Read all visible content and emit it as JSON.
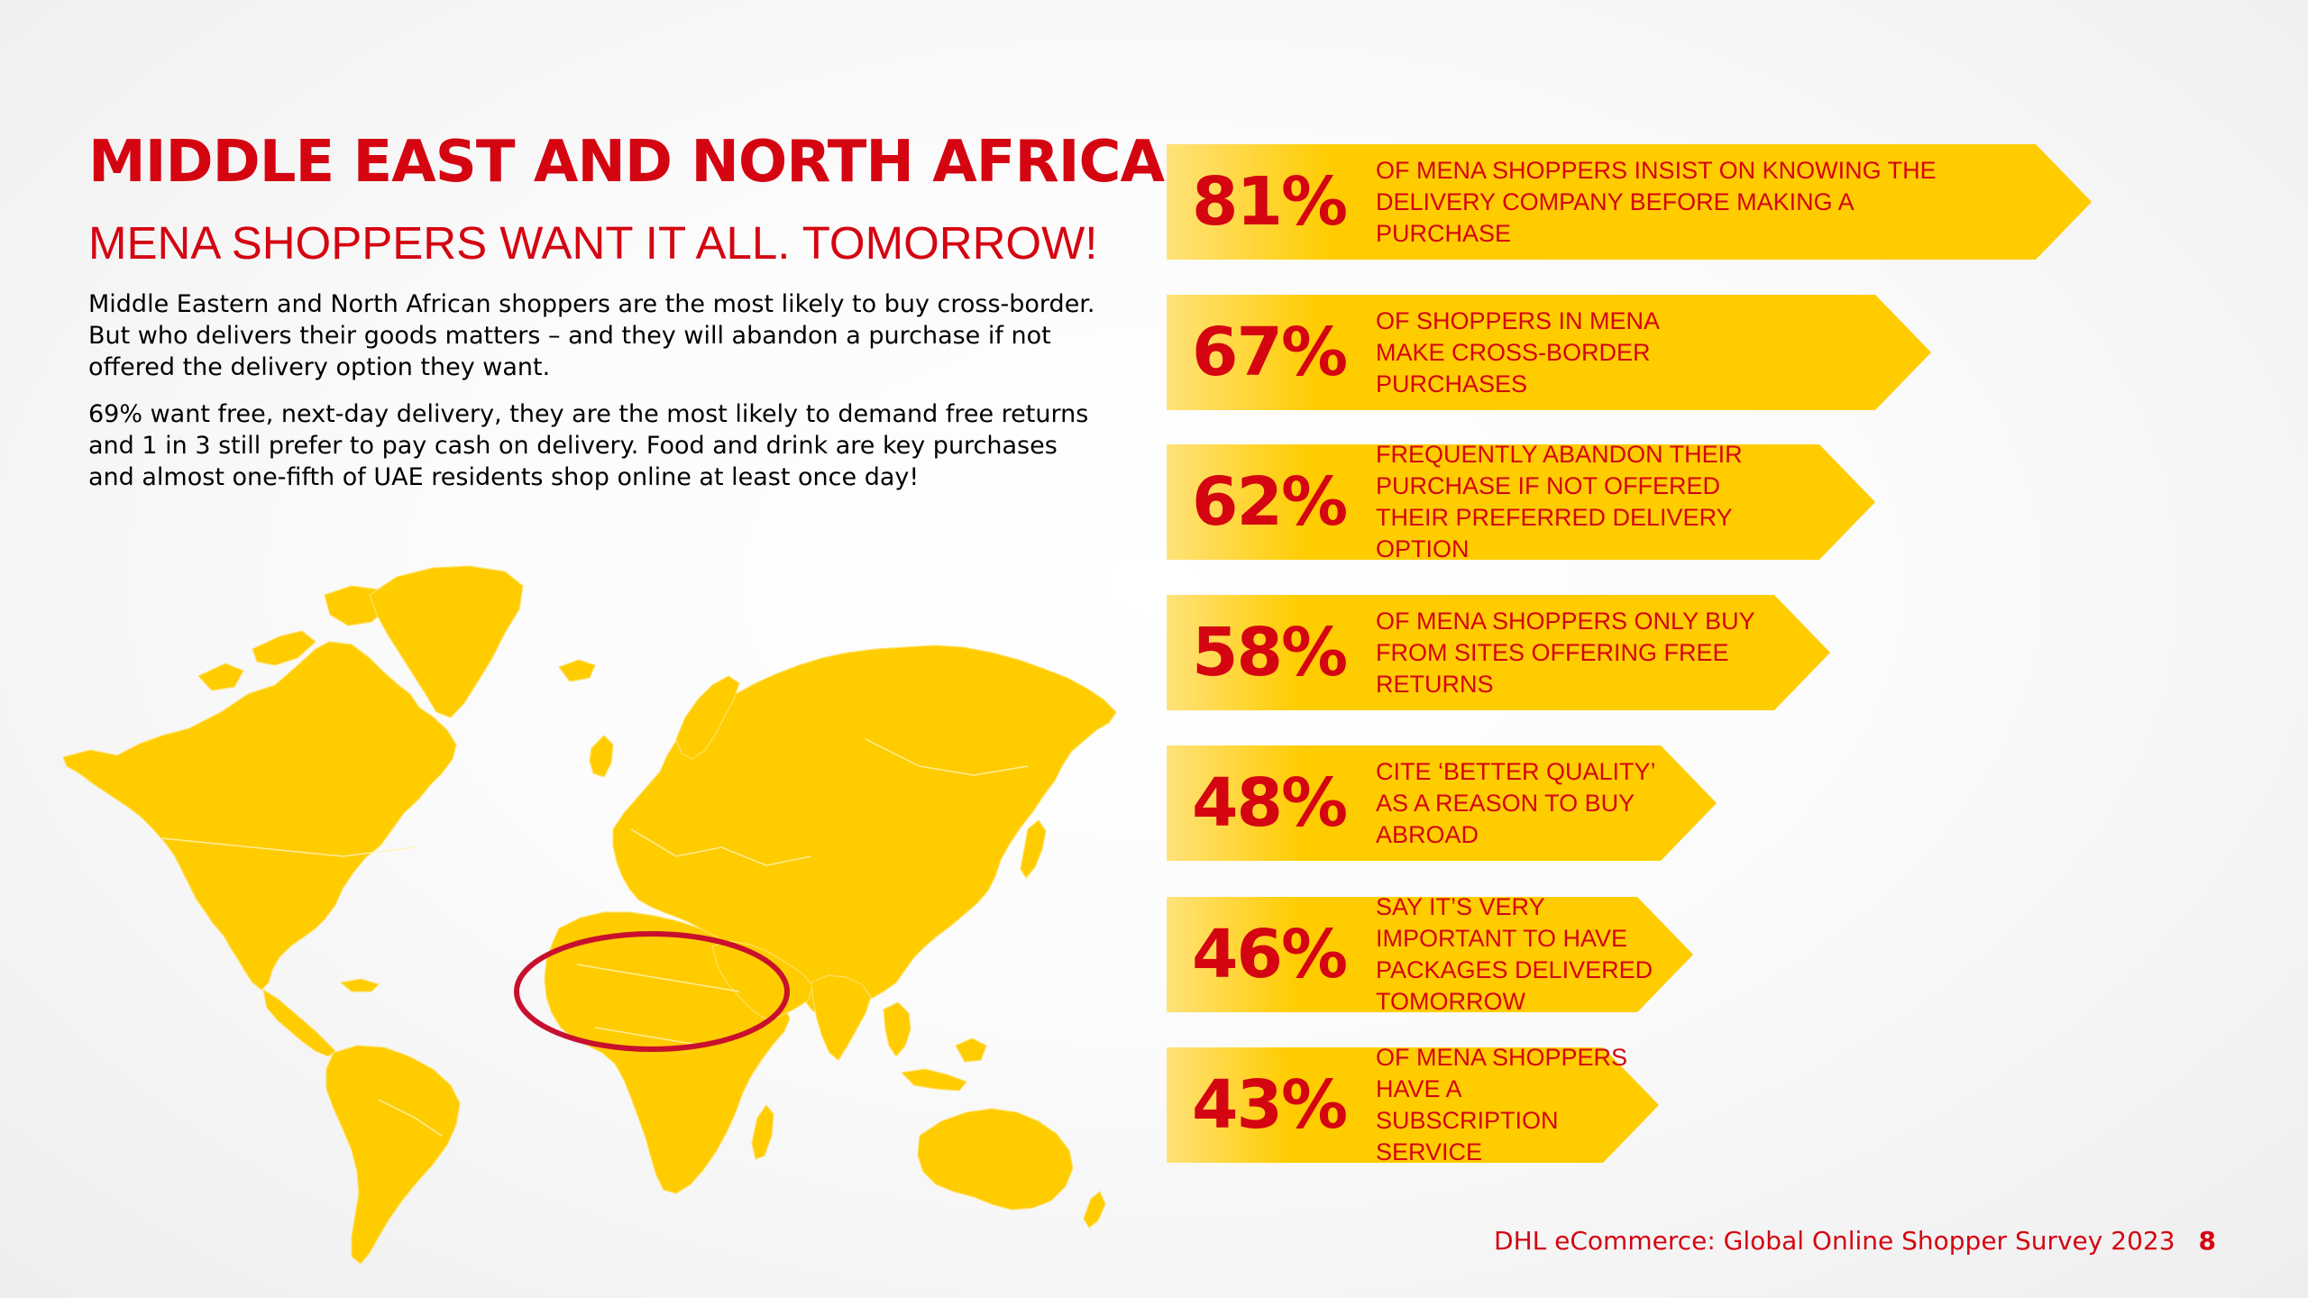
{
  "title": "MIDDLE EAST AND NORTH AFRICA",
  "subtitle": "MENA SHOPPERS WANT IT ALL. TOMORROW!",
  "paragraphs": [
    "Middle Eastern and North African shoppers are the most likely to buy cross-border. But who delivers their goods matters – and they will abandon a purchase if not offered the delivery option they want.",
    "69% want free, next-day delivery, they are the most likely to demand free returns and 1 in 3 still prefer to pay cash on delivery. Food and drink are key purchases and almost one-fifth of UAE residents shop online at least once day!"
  ],
  "stats": [
    {
      "value": "81%",
      "text": "OF MENA SHOPPERS INSIST ON KNOWING THE DELIVERY COMPANY BEFORE MAKING A PURCHASE"
    },
    {
      "value": "67%",
      "text": "OF SHOPPERS IN MENA MAKE CROSS-BORDER PURCHASES"
    },
    {
      "value": "62%",
      "text": "FREQUENTLY ABANDON THEIR PURCHASE IF NOT OFFERED THEIR PREFERRED DELIVERY OPTION"
    },
    {
      "value": "58%",
      "text": "OF MENA SHOPPERS ONLY BUY FROM SITES OFFERING FREE RETURNS"
    },
    {
      "value": "48%",
      "text": "CITE ‘BETTER QUALITY’ AS A REASON TO BUY ABROAD"
    },
    {
      "value": "46%",
      "text": "SAY IT’S VERY IMPORTANT TO HAVE PACKAGES DELIVERED TOMORROW"
    },
    {
      "value": "43%",
      "text": "OF MENA SHOPPERS HAVE A SUBSCRIPTION SERVICE"
    }
  ],
  "footer": {
    "source": "DHL eCommerce: Global Online Shopper Survey 2023",
    "page_number": "8"
  },
  "colors": {
    "brand_red": "#d40511",
    "brand_yellow": "#ffcc00",
    "highlight_ring": "#c8102e"
  },
  "map": {
    "highlighted_region": "Middle East and North Africa"
  }
}
